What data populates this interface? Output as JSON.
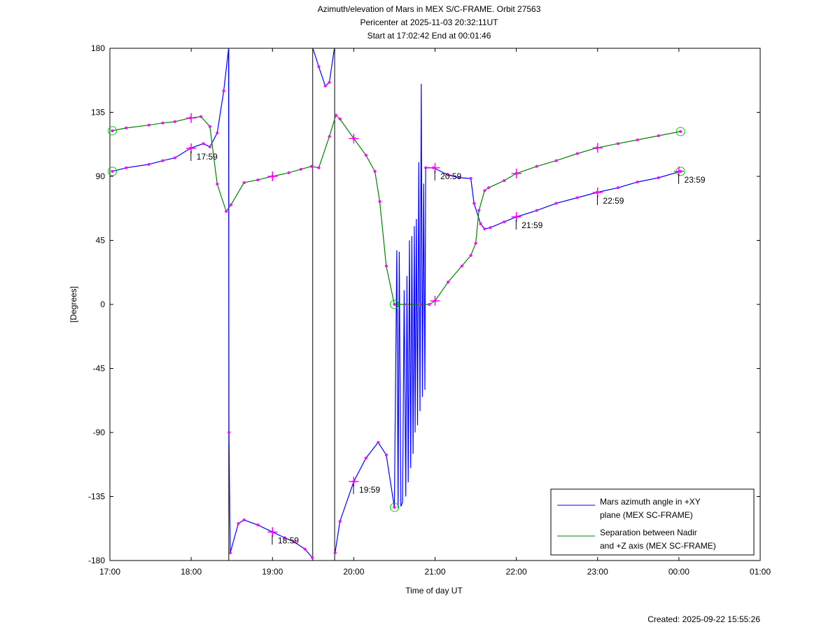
{
  "chart_data": {
    "type": "line",
    "title": [
      "Azimuth/elevation of Mars in MEX S/C-FRAME.  Orbit 27563",
      "Pericenter at 2025-11-03 20:32:11UT",
      "Start at 17:02:42 End at 00:01:46"
    ],
    "xlabel": "Time of day UT",
    "ylabel": "[Degrees]",
    "xlim": [
      17,
      25
    ],
    "ylim": [
      -180,
      180
    ],
    "xticks": [
      17,
      18,
      19,
      20,
      21,
      22,
      23,
      24,
      25
    ],
    "xtick_labels": [
      "17:00",
      "18:00",
      "19:00",
      "20:00",
      "21:00",
      "22:00",
      "23:00",
      "00:00",
      "01:00"
    ],
    "yticks": [
      180,
      135,
      90,
      45,
      0,
      -45,
      -90,
      -135,
      -180
    ],
    "ytick_labels": [
      "180",
      "135",
      "90",
      "45",
      "0",
      "-45",
      "-90",
      "-135",
      "-180"
    ],
    "grid": false,
    "legend_position": "bottom-right",
    "footer": "Created: 2025-09-22 15:55:26",
    "series": [
      {
        "name": "Mars azimuth angle in +XY plane (MEX SC-FRAME)",
        "legend_lines": [
          "Mars azimuth angle in +XY",
          "plane (MEX SC-FRAME)"
        ],
        "color": "#0000ff",
        "points": [
          [
            17.03,
            93.5
          ],
          [
            17.2,
            96
          ],
          [
            17.48,
            98.4
          ],
          [
            17.65,
            101
          ],
          [
            17.8,
            103
          ],
          [
            17.99,
            109.7
          ],
          [
            18.15,
            113
          ],
          [
            18.23,
            110.7
          ],
          [
            18.32,
            120.5
          ],
          [
            18.4,
            150
          ],
          [
            18.46,
            179.5
          ],
          [
            18.465,
            -90
          ],
          [
            18.48,
            -174.6
          ],
          [
            18.58,
            -154
          ],
          [
            18.65,
            -151.5
          ],
          [
            18.82,
            -155
          ],
          [
            19.0,
            -160
          ],
          [
            19.15,
            -164
          ],
          [
            19.27,
            -167
          ],
          [
            19.4,
            -172
          ],
          [
            19.49,
            -178
          ],
          [
            19.5,
            179.5
          ],
          [
            19.57,
            167
          ],
          [
            19.65,
            153.5
          ],
          [
            19.7,
            156
          ],
          [
            19.76,
            179.5
          ],
          [
            19.77,
            -174.6
          ],
          [
            19.83,
            -152.5
          ],
          [
            20.0,
            -124.5
          ],
          [
            20.15,
            -108
          ],
          [
            20.3,
            -97
          ],
          [
            20.4,
            -105.8
          ],
          [
            20.5,
            -142.6
          ],
          [
            20.53,
            38
          ],
          [
            20.545,
            -143
          ],
          [
            20.56,
            37
          ],
          [
            20.58,
            -142
          ],
          [
            20.6,
            -139
          ],
          [
            20.62,
            10
          ],
          [
            20.64,
            -135
          ],
          [
            20.655,
            20
          ],
          [
            20.67,
            -125
          ],
          [
            20.685,
            45
          ],
          [
            20.7,
            -115
          ],
          [
            20.715,
            48
          ],
          [
            20.73,
            -105
          ],
          [
            20.745,
            55
          ],
          [
            20.755,
            -90
          ],
          [
            20.77,
            60
          ],
          [
            20.785,
            -85
          ],
          [
            20.8,
            100
          ],
          [
            20.815,
            -75
          ],
          [
            20.83,
            155
          ],
          [
            20.845,
            -65
          ],
          [
            20.86,
            85
          ],
          [
            20.875,
            -60
          ],
          [
            20.885,
            96
          ],
          [
            20.98,
            96
          ],
          [
            21.16,
            91
          ],
          [
            21.3,
            89
          ],
          [
            21.44,
            88.5
          ],
          [
            21.48,
            71
          ],
          [
            21.56,
            56.6
          ],
          [
            21.61,
            53
          ],
          [
            21.68,
            54
          ],
          [
            21.85,
            58
          ],
          [
            22.0,
            61.5
          ],
          [
            22.25,
            66
          ],
          [
            22.49,
            71
          ],
          [
            22.75,
            75
          ],
          [
            22.99,
            78.7
          ],
          [
            23.25,
            82
          ],
          [
            23.49,
            86
          ],
          [
            23.75,
            89
          ],
          [
            24.02,
            93.5
          ]
        ],
        "time_labels": [
          {
            "t": 17.98,
            "v": 109.7,
            "label": "17:59"
          },
          {
            "t": 18.98,
            "v": -160,
            "label": "18:59"
          },
          {
            "t": 19.98,
            "v": -124.5,
            "label": "19:59"
          },
          {
            "t": 20.98,
            "v": 96,
            "label": "20:59"
          },
          {
            "t": 21.98,
            "v": 61.5,
            "label": "21:59"
          },
          {
            "t": 22.98,
            "v": 78.7,
            "label": "22:59"
          },
          {
            "t": 23.98,
            "v": 93.5,
            "label": "23:59"
          }
        ]
      },
      {
        "name": "Separation between Nadir and +Z axis (MEX SC-FRAME)",
        "legend_lines": [
          "Separation between Nadir",
          "and +Z axis (MEX SC-FRAME)"
        ],
        "color": "#008000",
        "points": [
          [
            17.03,
            122
          ],
          [
            17.2,
            124
          ],
          [
            17.48,
            126
          ],
          [
            17.65,
            127.5
          ],
          [
            17.8,
            128.4
          ],
          [
            17.99,
            131
          ],
          [
            18.12,
            132
          ],
          [
            18.23,
            125
          ],
          [
            18.32,
            84.6
          ],
          [
            18.43,
            65.4
          ],
          [
            18.49,
            70
          ],
          [
            18.65,
            85.6
          ],
          [
            18.82,
            87.5
          ],
          [
            19.0,
            90
          ],
          [
            19.2,
            92.5
          ],
          [
            19.35,
            95
          ],
          [
            19.48,
            97
          ],
          [
            19.57,
            96
          ],
          [
            19.7,
            118
          ],
          [
            19.78,
            133
          ],
          [
            19.83,
            130.3
          ],
          [
            20.0,
            116.6
          ],
          [
            20.15,
            104.8
          ],
          [
            20.26,
            93.5
          ],
          [
            20.32,
            72.3
          ],
          [
            20.4,
            27
          ],
          [
            20.5,
            0
          ],
          [
            20.65,
            0
          ],
          [
            20.82,
            0
          ],
          [
            20.93,
            0
          ],
          [
            21.0,
            2.5
          ],
          [
            21.16,
            15.7
          ],
          [
            21.33,
            27
          ],
          [
            21.44,
            34.4
          ],
          [
            21.5,
            43
          ],
          [
            21.54,
            66
          ],
          [
            21.61,
            80
          ],
          [
            21.66,
            82
          ],
          [
            21.85,
            87
          ],
          [
            22.0,
            92
          ],
          [
            22.25,
            97
          ],
          [
            22.49,
            101
          ],
          [
            22.75,
            106
          ],
          [
            22.99,
            110
          ],
          [
            23.25,
            113
          ],
          [
            23.49,
            115.6
          ],
          [
            23.75,
            118.5
          ],
          [
            24.02,
            121.5
          ]
        ],
        "hour_crosses": [
          [
            18.0,
            131
          ],
          [
            19.0,
            90
          ],
          [
            20.0,
            116.6
          ],
          [
            21.0,
            2.5
          ],
          [
            22.0,
            92
          ],
          [
            23.0,
            110
          ]
        ]
      }
    ]
  }
}
